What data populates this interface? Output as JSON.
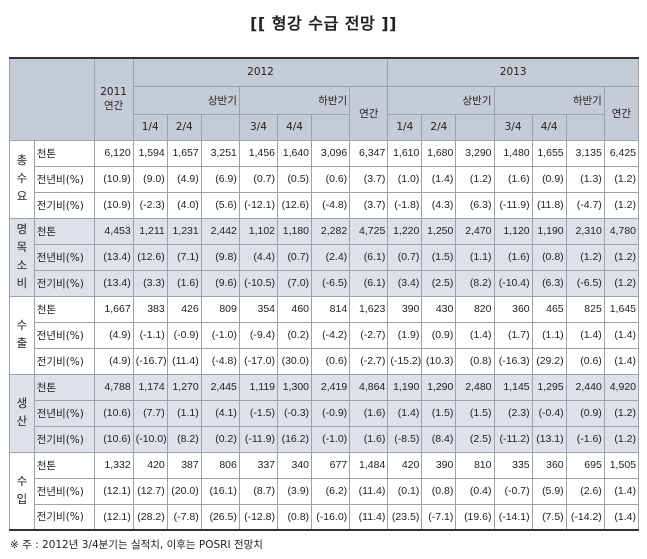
{
  "title": "[[ 형강 수급 전망 ]]",
  "header": {
    "year_2011": "2011",
    "annual": "연간",
    "year_2012": "2012",
    "year_2013": "2013",
    "h1": "상반기",
    "h2": "하반기",
    "q1": "1/4",
    "q2": "2/4",
    "q3": "3/4",
    "q4": "4/4"
  },
  "groups": [
    {
      "category": "총 수 요",
      "rows": [
        {
          "unit": "천톤",
          "values": [
            "6,120",
            "1,594",
            "1,657",
            "3,251",
            "1,456",
            "1,640",
            "3,096",
            "6,347",
            "1,610",
            "1,680",
            "3,290",
            "1,480",
            "1,655",
            "3,135",
            "6,425"
          ]
        },
        {
          "unit": "전년비(%)",
          "values": [
            "(10.9)",
            "(9.0)",
            "(4.9)",
            "(6.9)",
            "(0.7)",
            "(0.5)",
            "(0.6)",
            "(3.7)",
            "(1.0)",
            "(1.4)",
            "(1.2)",
            "(1.6)",
            "(0.9)",
            "(1.3)",
            "(1.2)"
          ]
        },
        {
          "unit": "전기비(%)",
          "values": [
            "(10.9)",
            "(-2.3)",
            "(4.0)",
            "(5.6)",
            "(-12.1)",
            "(12.6)",
            "(-4.8)",
            "(3.7)",
            "(-1.8)",
            "(4.3)",
            "(6.3)",
            "(-11.9)",
            "(11.8)",
            "(-4.7)",
            "(1.2)"
          ]
        }
      ]
    },
    {
      "category": "명 목 소 비",
      "rows": [
        {
          "unit": "천톤",
          "values": [
            "4,453",
            "1,211",
            "1,231",
            "2,442",
            "1,102",
            "1,180",
            "2,282",
            "4,725",
            "1,220",
            "1,250",
            "2,470",
            "1,120",
            "1,190",
            "2,310",
            "4,780"
          ]
        },
        {
          "unit": "전년비(%)",
          "values": [
            "(13.4)",
            "(12.6)",
            "(7.1)",
            "(9.8)",
            "(4.4)",
            "(0.7)",
            "(2.4)",
            "(6.1)",
            "(0.7)",
            "(1.5)",
            "(1.1)",
            "(1.6)",
            "(0.8)",
            "(1.2)",
            "(1.2)"
          ]
        },
        {
          "unit": "전기비(%)",
          "values": [
            "(13.4)",
            "(3.3)",
            "(1.6)",
            "(9.6)",
            "(-10.5)",
            "(7.0)",
            "(-6.5)",
            "(6.1)",
            "(3.4)",
            "(2.5)",
            "(8.2)",
            "(-10.4)",
            "(6.3)",
            "(-6.5)",
            "(1.2)"
          ]
        }
      ]
    },
    {
      "category": "수 출",
      "rows": [
        {
          "unit": "천톤",
          "values": [
            "1,667",
            "383",
            "426",
            "809",
            "354",
            "460",
            "814",
            "1,623",
            "390",
            "430",
            "820",
            "360",
            "465",
            "825",
            "1,645"
          ]
        },
        {
          "unit": "전년비(%)",
          "values": [
            "(4.9)",
            "(-1.1)",
            "(-0.9)",
            "(-1.0)",
            "(-9.4)",
            "(0.2)",
            "(-4.2)",
            "(-2.7)",
            "(1.9)",
            "(0.9)",
            "(1.4)",
            "(1.7)",
            "(1.1)",
            "(1.4)",
            "(1.4)"
          ]
        },
        {
          "unit": "전기비(%)",
          "values": [
            "(4.9)",
            "(-16.7)",
            "(11.4)",
            "(-4.8)",
            "(-17.0)",
            "(30.0)",
            "(0.6)",
            "(-2.7)",
            "(-15.2)",
            "(10.3)",
            "(0.8)",
            "(-16.3)",
            "(29.2)",
            "(0.6)",
            "(1.4)"
          ]
        }
      ]
    },
    {
      "category": "생 산",
      "rows": [
        {
          "unit": "천톤",
          "values": [
            "4,788",
            "1,174",
            "1,270",
            "2,445",
            "1,119",
            "1,300",
            "2,419",
            "4,864",
            "1,190",
            "1,290",
            "2,480",
            "1,145",
            "1,295",
            "2,440",
            "4,920"
          ]
        },
        {
          "unit": "전년비(%)",
          "values": [
            "(10.6)",
            "(7.7)",
            "(1.1)",
            "(4.1)",
            "(-1.5)",
            "(-0.3)",
            "(-0.9)",
            "(1.6)",
            "(1.4)",
            "(1.5)",
            "(1.5)",
            "(2.3)",
            "(-0.4)",
            "(0.9)",
            "(1.2)"
          ]
        },
        {
          "unit": "전기비(%)",
          "values": [
            "(10.6)",
            "(-10.0)",
            "(8.2)",
            "(0.2)",
            "(-11.9)",
            "(16.2)",
            "(-1.0)",
            "(1.6)",
            "(-8.5)",
            "(8.4)",
            "(2.5)",
            "(-11.2)",
            "(13.1)",
            "(-1.6)",
            "(1.2)"
          ]
        }
      ]
    },
    {
      "category": "수 입",
      "rows": [
        {
          "unit": "천톤",
          "values": [
            "1,332",
            "420",
            "387",
            "806",
            "337",
            "340",
            "677",
            "1,484",
            "420",
            "390",
            "810",
            "335",
            "360",
            "695",
            "1,505"
          ]
        },
        {
          "unit": "전년비(%)",
          "values": [
            "(12.1)",
            "(12.7)",
            "(20.0)",
            "(16.1)",
            "(8.7)",
            "(3.9)",
            "(6.2)",
            "(11.4)",
            "(0.1)",
            "(0.8)",
            "(0.4)",
            "(-0.7)",
            "(5.9)",
            "(2.6)",
            "(1.4)"
          ]
        },
        {
          "unit": "전기비(%)",
          "values": [
            "(12.1)",
            "(28.2)",
            "(-7.8)",
            "(26.5)",
            "(-12.8)",
            "(0.8)",
            "(-16.0)",
            "(11.4)",
            "(23.5)",
            "(-7.1)",
            "(19.6)",
            "(-14.1)",
            "(7.5)",
            "(-14.2)",
            "(1.4)"
          ]
        }
      ]
    }
  ],
  "footnote": "※ 주 : 2012년 3/4분기는 실적치, 이후는 POSRI 전망치"
}
